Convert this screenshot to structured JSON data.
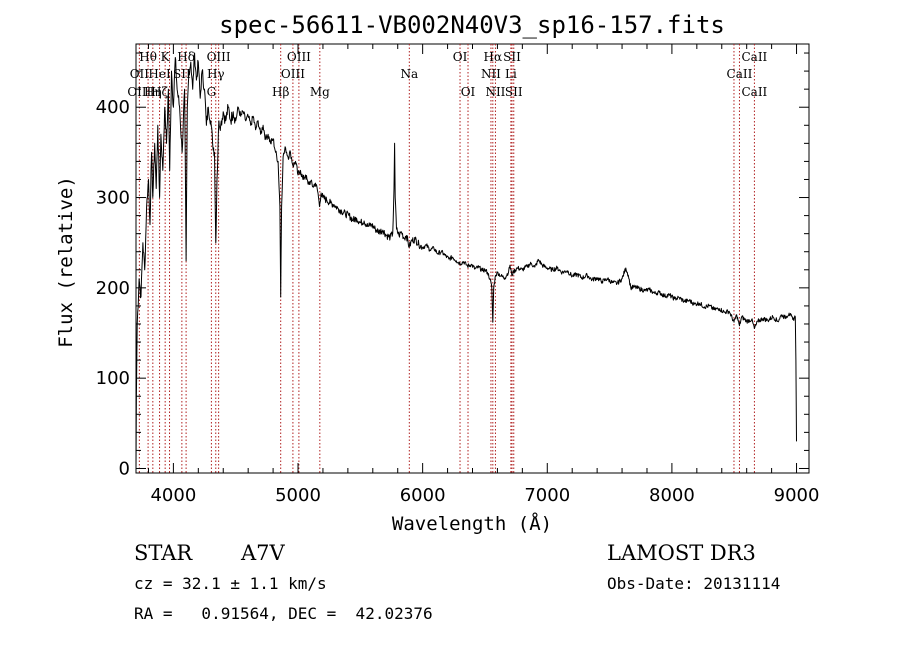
{
  "chart_data": {
    "type": "line",
    "title": "spec-56611-VB002N40V3_sp16-157.fits",
    "xlabel": "Wavelength (Å)",
    "ylabel": "Flux (relative)",
    "xlim": [
      3700,
      9100
    ],
    "ylim": [
      -5,
      470
    ],
    "xticks": [
      {
        "value": 4000,
        "label": "4000"
      },
      {
        "value": 5000,
        "label": "5000"
      },
      {
        "value": 6000,
        "label": "6000"
      },
      {
        "value": 7000,
        "label": "7000"
      },
      {
        "value": 8000,
        "label": "8000"
      },
      {
        "value": 9000,
        "label": "9000"
      }
    ],
    "yticks": [
      {
        "value": 0,
        "label": "0"
      },
      {
        "value": 100,
        "label": "100"
      },
      {
        "value": 200,
        "label": "200"
      },
      {
        "value": 300,
        "label": "300"
      },
      {
        "value": 400,
        "label": "400"
      }
    ],
    "series": [
      {
        "name": "flux",
        "points": [
          [
            3700,
            0
          ],
          [
            3703,
            80
          ],
          [
            3710,
            160
          ],
          [
            3725,
            210
          ],
          [
            3740,
            190
          ],
          [
            3755,
            250
          ],
          [
            3770,
            220
          ],
          [
            3785,
            290
          ],
          [
            3800,
            320
          ],
          [
            3812,
            270
          ],
          [
            3825,
            350
          ],
          [
            3835,
            300
          ],
          [
            3850,
            360
          ],
          [
            3862,
            310
          ],
          [
            3875,
            380
          ],
          [
            3889,
            300
          ],
          [
            3900,
            370
          ],
          [
            3915,
            330
          ],
          [
            3930,
            400
          ],
          [
            3945,
            360
          ],
          [
            3960,
            420
          ],
          [
            3970,
            330
          ],
          [
            3985,
            440
          ],
          [
            4000,
            400
          ],
          [
            4015,
            455
          ],
          [
            4030,
            420
          ],
          [
            4050,
            400
          ],
          [
            4070,
            350
          ],
          [
            4090,
            420
          ],
          [
            4102,
            230
          ],
          [
            4112,
            400
          ],
          [
            4125,
            440
          ],
          [
            4140,
            450
          ],
          [
            4155,
            420
          ],
          [
            4170,
            460
          ],
          [
            4185,
            430
          ],
          [
            4200,
            450
          ],
          [
            4215,
            410
          ],
          [
            4230,
            440
          ],
          [
            4250,
            420
          ],
          [
            4265,
            380
          ],
          [
            4280,
            400
          ],
          [
            4300,
            385
          ],
          [
            4315,
            360
          ],
          [
            4330,
            350
          ],
          [
            4340,
            250
          ],
          [
            4350,
            320
          ],
          [
            4365,
            385
          ],
          [
            4380,
            380
          ],
          [
            4400,
            395
          ],
          [
            4420,
            385
          ],
          [
            4440,
            400
          ],
          [
            4460,
            385
          ],
          [
            4480,
            395
          ],
          [
            4500,
            385
          ],
          [
            4520,
            400
          ],
          [
            4540,
            390
          ],
          [
            4560,
            395
          ],
          [
            4580,
            385
          ],
          [
            4600,
            390
          ],
          [
            4620,
            380
          ],
          [
            4640,
            390
          ],
          [
            4660,
            375
          ],
          [
            4680,
            385
          ],
          [
            4700,
            370
          ],
          [
            4720,
            380
          ],
          [
            4740,
            365
          ],
          [
            4760,
            370
          ],
          [
            4780,
            360
          ],
          [
            4800,
            365
          ],
          [
            4820,
            350
          ],
          [
            4840,
            340
          ],
          [
            4855,
            290
          ],
          [
            4861,
            190
          ],
          [
            4868,
            290
          ],
          [
            4880,
            345
          ],
          [
            4900,
            355
          ],
          [
            4920,
            345
          ],
          [
            4940,
            350
          ],
          [
            4960,
            335
          ],
          [
            4980,
            340
          ],
          [
            5000,
            325
          ],
          [
            5020,
            330
          ],
          [
            5040,
            320
          ],
          [
            5060,
            325
          ],
          [
            5080,
            315
          ],
          [
            5100,
            318
          ],
          [
            5120,
            312
          ],
          [
            5140,
            316
          ],
          [
            5160,
            305
          ],
          [
            5172,
            290
          ],
          [
            5185,
            305
          ],
          [
            5200,
            300
          ],
          [
            5230,
            297
          ],
          [
            5260,
            294
          ],
          [
            5290,
            292
          ],
          [
            5320,
            288
          ],
          [
            5350,
            285
          ],
          [
            5380,
            282
          ],
          [
            5410,
            280
          ],
          [
            5440,
            275
          ],
          [
            5470,
            277
          ],
          [
            5500,
            272
          ],
          [
            5530,
            274
          ],
          [
            5560,
            268
          ],
          [
            5590,
            270
          ],
          [
            5620,
            265
          ],
          [
            5650,
            262
          ],
          [
            5680,
            264
          ],
          [
            5710,
            258
          ],
          [
            5740,
            256
          ],
          [
            5760,
            260
          ],
          [
            5770,
            310
          ],
          [
            5775,
            360
          ],
          [
            5780,
            300
          ],
          [
            5790,
            265
          ],
          [
            5810,
            258
          ],
          [
            5830,
            262
          ],
          [
            5850,
            255
          ],
          [
            5870,
            258
          ],
          [
            5893,
            245
          ],
          [
            5910,
            252
          ],
          [
            5940,
            254
          ],
          [
            5970,
            248
          ],
          [
            6000,
            245
          ],
          [
            6030,
            247
          ],
          [
            6060,
            242
          ],
          [
            6090,
            244
          ],
          [
            6120,
            238
          ],
          [
            6150,
            240
          ],
          [
            6180,
            236
          ],
          [
            6210,
            232
          ],
          [
            6240,
            234
          ],
          [
            6270,
            230
          ],
          [
            6300,
            227
          ],
          [
            6330,
            229
          ],
          [
            6360,
            224
          ],
          [
            6390,
            226
          ],
          [
            6420,
            221
          ],
          [
            6450,
            223
          ],
          [
            6480,
            219
          ],
          [
            6500,
            220
          ],
          [
            6520,
            217
          ],
          [
            6540,
            210
          ],
          [
            6555,
            200
          ],
          [
            6563,
            162
          ],
          [
            6570,
            200
          ],
          [
            6585,
            214
          ],
          [
            6600,
            217
          ],
          [
            6630,
            213
          ],
          [
            6660,
            211
          ],
          [
            6690,
            218
          ],
          [
            6700,
            225
          ],
          [
            6715,
            214
          ],
          [
            6730,
            218
          ],
          [
            6760,
            222
          ],
          [
            6800,
            220
          ],
          [
            6840,
            224
          ],
          [
            6870,
            227
          ],
          [
            6900,
            223
          ],
          [
            6930,
            231
          ],
          [
            6960,
            225
          ],
          [
            7000,
            222
          ],
          [
            7040,
            220
          ],
          [
            7080,
            222
          ],
          [
            7120,
            217
          ],
          [
            7160,
            219
          ],
          [
            7200,
            213
          ],
          [
            7240,
            215
          ],
          [
            7280,
            211
          ],
          [
            7320,
            214
          ],
          [
            7360,
            209
          ],
          [
            7400,
            211
          ],
          [
            7440,
            207
          ],
          [
            7480,
            210
          ],
          [
            7520,
            206
          ],
          [
            7560,
            205
          ],
          [
            7600,
            210
          ],
          [
            7630,
            222
          ],
          [
            7650,
            214
          ],
          [
            7670,
            200
          ],
          [
            7700,
            201
          ],
          [
            7740,
            199
          ],
          [
            7780,
            197
          ],
          [
            7820,
            198
          ],
          [
            7860,
            194
          ],
          [
            7900,
            195
          ],
          [
            7940,
            191
          ],
          [
            7980,
            192
          ],
          [
            8020,
            188
          ],
          [
            8060,
            189
          ],
          [
            8100,
            185
          ],
          [
            8140,
            186
          ],
          [
            8180,
            182
          ],
          [
            8220,
            183
          ],
          [
            8260,
            179
          ],
          [
            8300,
            180
          ],
          [
            8340,
            176
          ],
          [
            8380,
            177
          ],
          [
            8420,
            173
          ],
          [
            8460,
            174
          ],
          [
            8498,
            162
          ],
          [
            8520,
            170
          ],
          [
            8542,
            158
          ],
          [
            8560,
            168
          ],
          [
            8600,
            163
          ],
          [
            8640,
            165
          ],
          [
            8662,
            155
          ],
          [
            8690,
            163
          ],
          [
            8730,
            166
          ],
          [
            8770,
            164
          ],
          [
            8810,
            168
          ],
          [
            8850,
            163
          ],
          [
            8880,
            170
          ],
          [
            8910,
            167
          ],
          [
            8940,
            172
          ],
          [
            8970,
            165
          ],
          [
            8990,
            168
          ],
          [
            8995,
            120
          ],
          [
            9000,
            30
          ]
        ]
      }
    ],
    "lines": [
      {
        "label": "Hθ",
        "wave": 3797,
        "row": 0
      },
      {
        "label": "OII",
        "wave": 3727,
        "row": 1
      },
      {
        "label": "OIII",
        "wave": 3727,
        "row": 2
      },
      {
        "label": "K",
        "wave": 3934,
        "row": 0
      },
      {
        "label": "HeI",
        "wave": 3889,
        "row": 1
      },
      {
        "label": "Hη",
        "wave": 3835,
        "row": 2
      },
      {
        "label": "SII",
        "wave": 4068,
        "row": 1
      },
      {
        "label": "Hζ",
        "wave": 3889,
        "row": 2
      },
      {
        "label": "Hδ",
        "wave": 4102,
        "row": 0
      },
      {
        "label": "OIII",
        "wave": 4363,
        "row": 0
      },
      {
        "label": "Hγ",
        "wave": 4340,
        "row": 1
      },
      {
        "label": "G",
        "wave": 4305,
        "row": 2
      },
      {
        "label": "OIII",
        "wave": 5007,
        "row": 0
      },
      {
        "label": "OIII",
        "wave": 4959,
        "row": 1
      },
      {
        "label": "Hβ",
        "wave": 4861,
        "row": 2
      },
      {
        "label": "Mg",
        "wave": 5175,
        "row": 2
      },
      {
        "label": "Na",
        "wave": 5893,
        "row": 1
      },
      {
        "label": "OI",
        "wave": 6300,
        "row": 0
      },
      {
        "label": "OI",
        "wave": 6364,
        "row": 2
      },
      {
        "label": "Hα",
        "wave": 6563,
        "row": 0
      },
      {
        "label": "SII",
        "wave": 6717,
        "row": 0
      },
      {
        "label": "NII",
        "wave": 6548,
        "row": 1
      },
      {
        "label": "Li",
        "wave": 6708,
        "row": 1
      },
      {
        "label": "NII",
        "wave": 6584,
        "row": 2
      },
      {
        "label": "SII",
        "wave": 6731,
        "row": 2
      },
      {
        "label": "CaII",
        "wave": 8662,
        "row": 0
      },
      {
        "label": "CaII",
        "wave": 8542,
        "row": 1
      },
      {
        "label": "CaII",
        "wave": 8662,
        "row": 2
      }
    ],
    "line_markers": [
      3727,
      3797,
      3835,
      3889,
      3934,
      3969,
      4068,
      4102,
      4305,
      4340,
      4363,
      4861,
      4959,
      5007,
      5175,
      5893,
      6300,
      6364,
      6548,
      6563,
      6584,
      6708,
      6717,
      6731,
      8498,
      8542,
      8662
    ]
  },
  "info": {
    "object_class": "STAR",
    "subclass": "A7V",
    "survey": "LAMOST DR3",
    "redshift": "cz = 32.1 ± 1.1 km/s",
    "obs_date": "Obs-Date: 20131114",
    "coords": "RA =   0.91564, DEC =  42.02376"
  },
  "colors": {
    "spectrum": "#000000",
    "line_marker": "#b02020",
    "axes": "#000000"
  }
}
